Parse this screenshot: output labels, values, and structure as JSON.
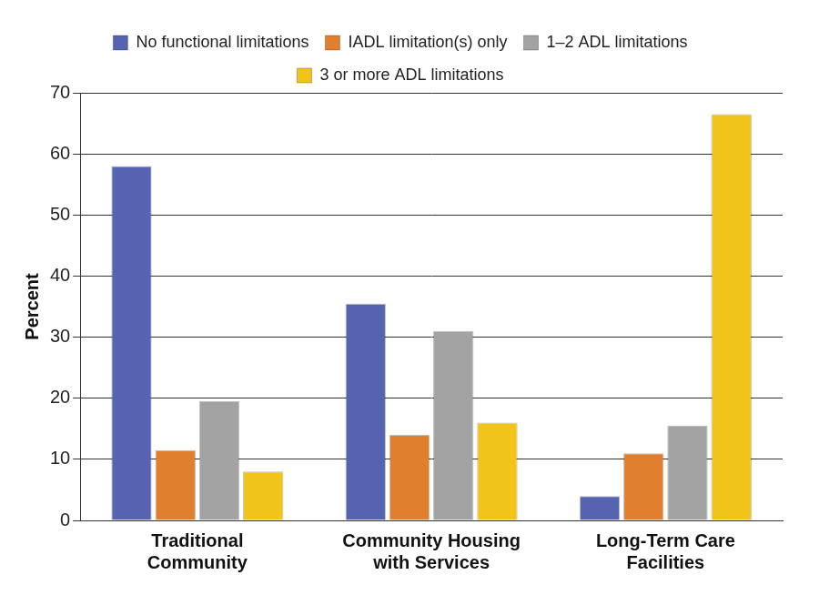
{
  "chart_data": {
    "type": "bar",
    "y_label": "Percent",
    "categories": [
      "Traditional Community",
      "Community Housing with Services",
      "Long-Term Care Facilities"
    ],
    "series": [
      {
        "name": "No functional limitations",
        "color": "#5563b0",
        "values": [
          58,
          35.5,
          4
        ]
      },
      {
        "name": "IADL limitation(s) only",
        "color": "#e07f2d",
        "values": [
          11.5,
          14,
          11
        ]
      },
      {
        "name": "1–2 ADL limitations",
        "color": "#a3a3a3",
        "values": [
          19.5,
          31,
          15.5
        ]
      },
      {
        "name": "3 or more ADL limitations",
        "color": "#f0c419",
        "values": [
          8,
          16,
          66.5
        ]
      }
    ],
    "ylim": [
      0,
      70
    ],
    "yticks": [
      0,
      10,
      20,
      30,
      40,
      50,
      60,
      70
    ],
    "grid": true,
    "legend": "top"
  }
}
